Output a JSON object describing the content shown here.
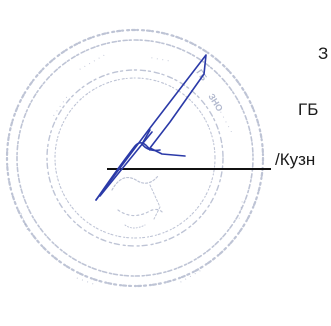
{
  "document": {
    "text_lines": [
      "З",
      "ГБ",
      "/Кузн"
    ]
  },
  "stamp": {
    "ink_color": "#8a94b4",
    "legible_fragments": [
      "ГБ",
      "ЗНО"
    ]
  },
  "signature": {
    "ink_color": "#2b3aa8"
  }
}
